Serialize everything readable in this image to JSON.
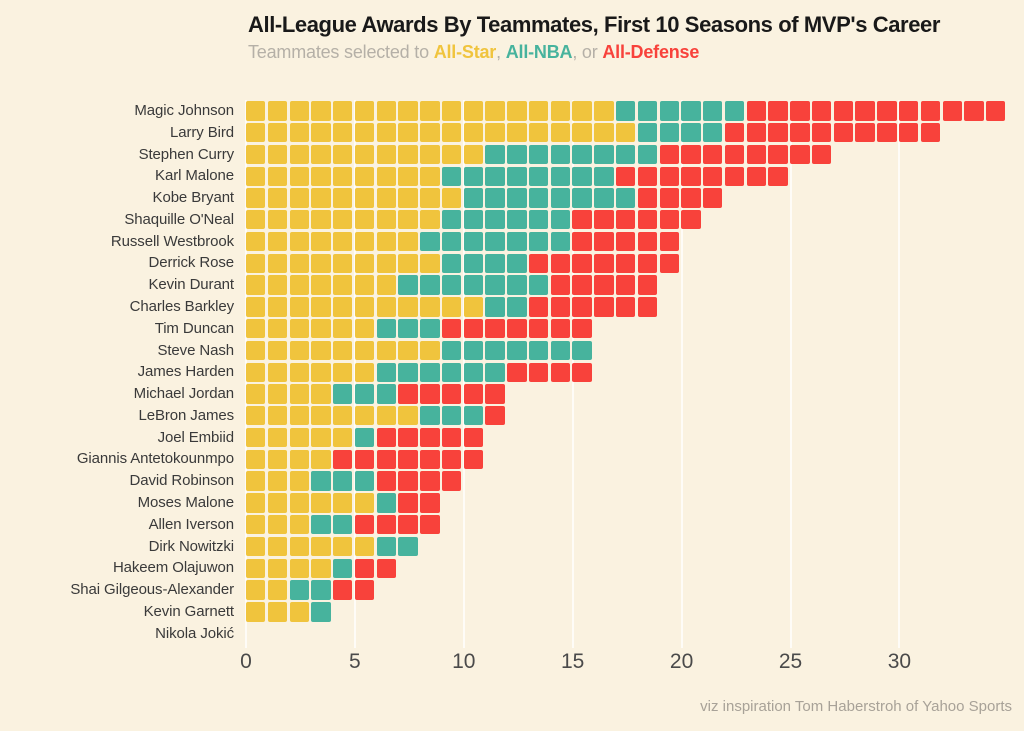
{
  "title": "All-League Awards By Teammates, First 10 Seasons of MVP's Career",
  "subtitle": {
    "prefix": "Teammates selected to ",
    "all_star_label": "All-Star",
    "sep1": ", ",
    "all_nba_label": "All-NBA",
    "sep2": ", or ",
    "all_defense_label": "All-Defense"
  },
  "caption": "viz inspiration Tom Haberstroh of Yahoo Sports",
  "colors": {
    "background": "#FAF2E0",
    "all_star": "#F0C43D",
    "all_nba": "#47B39D",
    "all_defense": "#F8423B",
    "title_text": "#191919",
    "subtitle_text": "#B5B0A7",
    "label_text": "#3A3A3A",
    "tick_text": "#4A4A4A",
    "caption_text": "#A8A298"
  },
  "chart_data": {
    "type": "bar",
    "orientation": "horizontal",
    "stacked": true,
    "waffle_unit": "1 square = 1 award",
    "title": "All-League Awards By Teammates, First 10 Seasons of MVP's Career",
    "subtitle": "Teammates selected to All-Star, All-NBA, or All-Defense",
    "legend": [
      "All-Star",
      "All-NBA",
      "All-Defense"
    ],
    "legend_position": "subtitle-inline",
    "series_keys": [
      "all_star",
      "all_nba",
      "all_defense"
    ],
    "x_ticks": [
      0,
      5,
      10,
      15,
      20,
      25,
      30
    ],
    "xlim": [
      0,
      35.5
    ],
    "grid": true,
    "players": [
      {
        "name": "Magic Johnson",
        "all_star": 17,
        "all_nba": 6,
        "all_defense": 12,
        "total": 35
      },
      {
        "name": "Larry Bird",
        "all_star": 18,
        "all_nba": 4,
        "all_defense": 10,
        "total": 32
      },
      {
        "name": "Stephen Curry",
        "all_star": 11,
        "all_nba": 8,
        "all_defense": 8,
        "total": 27
      },
      {
        "name": "Karl Malone",
        "all_star": 9,
        "all_nba": 8,
        "all_defense": 8,
        "total": 25
      },
      {
        "name": "Kobe Bryant",
        "all_star": 10,
        "all_nba": 8,
        "all_defense": 4,
        "total": 22
      },
      {
        "name": "Shaquille O'Neal",
        "all_star": 9,
        "all_nba": 6,
        "all_defense": 6,
        "total": 21
      },
      {
        "name": "Russell Westbrook",
        "all_star": 8,
        "all_nba": 7,
        "all_defense": 5,
        "total": 20
      },
      {
        "name": "Derrick Rose",
        "all_star": 9,
        "all_nba": 4,
        "all_defense": 7,
        "total": 20
      },
      {
        "name": "Kevin Durant",
        "all_star": 7,
        "all_nba": 7,
        "all_defense": 5,
        "total": 19
      },
      {
        "name": "Charles Barkley",
        "all_star": 11,
        "all_nba": 2,
        "all_defense": 6,
        "total": 19
      },
      {
        "name": "Tim Duncan",
        "all_star": 6,
        "all_nba": 3,
        "all_defense": 7,
        "total": 16
      },
      {
        "name": "Steve Nash",
        "all_star": 9,
        "all_nba": 7,
        "all_defense": 0,
        "total": 16
      },
      {
        "name": "James Harden",
        "all_star": 6,
        "all_nba": 6,
        "all_defense": 4,
        "total": 16
      },
      {
        "name": "Michael Jordan",
        "all_star": 4,
        "all_nba": 3,
        "all_defense": 5,
        "total": 12
      },
      {
        "name": "LeBron James",
        "all_star": 8,
        "all_nba": 3,
        "all_defense": 1,
        "total": 12
      },
      {
        "name": "Joel Embiid",
        "all_star": 5,
        "all_nba": 1,
        "all_defense": 5,
        "total": 11
      },
      {
        "name": "Giannis Antetokounmpo",
        "all_star": 4,
        "all_nba": 0,
        "all_defense": 7,
        "total": 11
      },
      {
        "name": "David Robinson",
        "all_star": 3,
        "all_nba": 3,
        "all_defense": 4,
        "total": 10
      },
      {
        "name": "Moses Malone",
        "all_star": 6,
        "all_nba": 1,
        "all_defense": 2,
        "total": 9
      },
      {
        "name": "Allen Iverson",
        "all_star": 3,
        "all_nba": 2,
        "all_defense": 4,
        "total": 9
      },
      {
        "name": "Dirk Nowitzki",
        "all_star": 6,
        "all_nba": 2,
        "all_defense": 0,
        "total": 8
      },
      {
        "name": "Hakeem Olajuwon",
        "all_star": 4,
        "all_nba": 1,
        "all_defense": 2,
        "total": 7
      },
      {
        "name": "Shai Gilgeous-Alexander",
        "all_star": 2,
        "all_nba": 2,
        "all_defense": 2,
        "total": 6
      },
      {
        "name": "Kevin Garnett",
        "all_star": 3,
        "all_nba": 1,
        "all_defense": 0,
        "total": 4
      },
      {
        "name": "Nikola Jokić",
        "all_star": 0,
        "all_nba": 0,
        "all_defense": 0,
        "total": 0
      }
    ]
  }
}
